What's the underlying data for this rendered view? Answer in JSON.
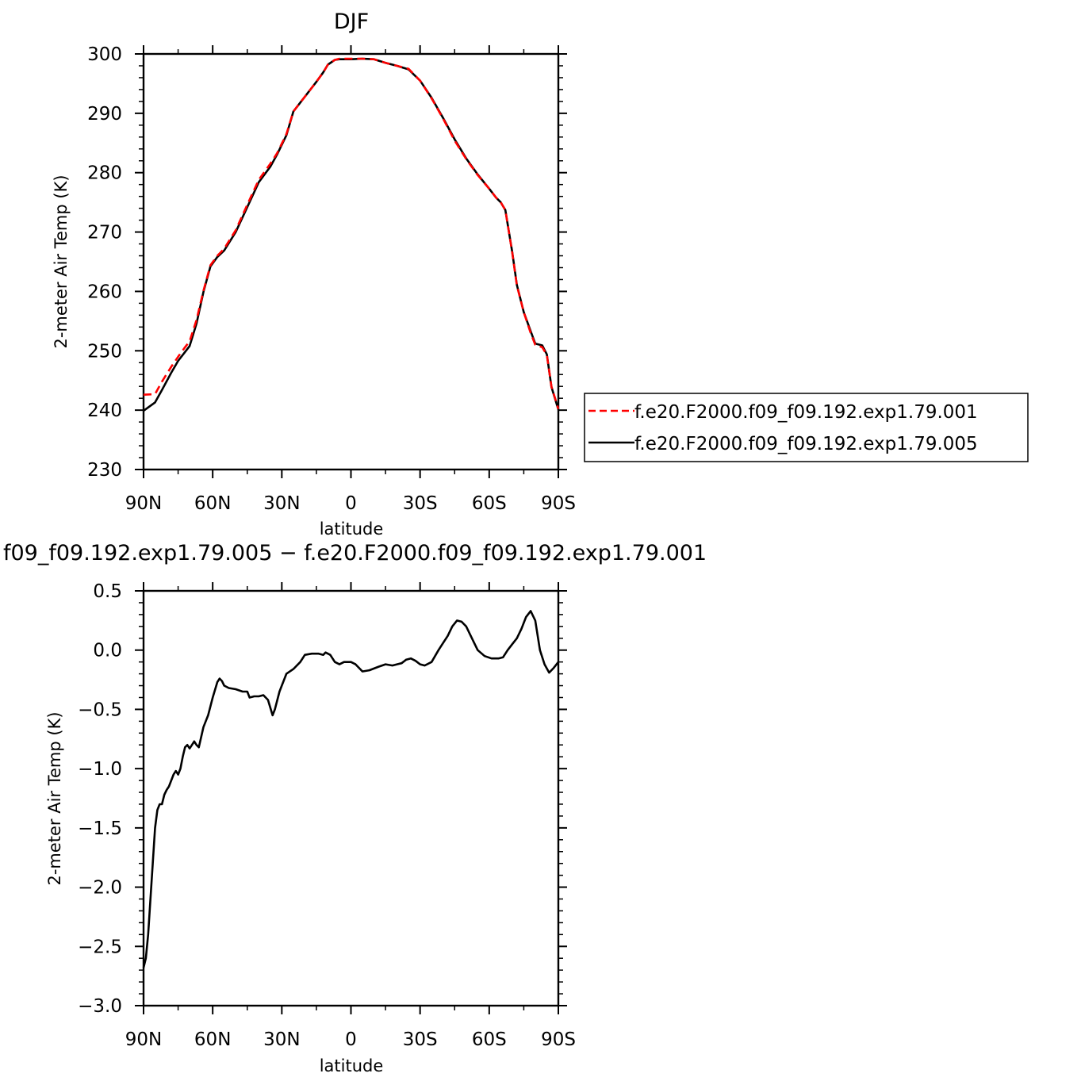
{
  "chart_data": [
    {
      "type": "line",
      "title": "DJF",
      "xlabel": "latitude",
      "ylabel": "2-meter Air Temp (K)",
      "xlim": [
        90,
        -90
      ],
      "ylim": [
        230,
        300
      ],
      "xticks": [
        90,
        60,
        30,
        0,
        -30,
        -60,
        -90
      ],
      "xtick_labels": [
        "90N",
        "60N",
        "30N",
        "0",
        "30S",
        "60S",
        "90S"
      ],
      "yticks": [
        230,
        240,
        250,
        260,
        270,
        280,
        290,
        300
      ],
      "ytick_labels": [
        "230",
        "240",
        "250",
        "260",
        "270",
        "280",
        "290",
        "300"
      ],
      "grid": false,
      "legend": "right",
      "series": [
        {
          "name": "f.e20.F2000.f09_f09.192.exp1.79.001",
          "color": "#ff0000",
          "style": "dashed",
          "x": [
            90,
            85,
            82,
            78,
            75,
            72,
            70,
            67,
            64,
            61,
            58,
            55,
            50,
            45,
            40,
            35,
            32,
            28,
            25,
            20,
            15,
            12,
            10,
            7,
            5,
            0,
            -5,
            -10,
            -15,
            -20,
            -25,
            -30,
            -35,
            -40,
            -45,
            -50,
            -55,
            -60,
            -63,
            -65,
            -67,
            -70,
            -72,
            -75,
            -78,
            -80,
            -83,
            -85,
            -87,
            -90
          ],
          "y": [
            242.6,
            242.7,
            244.8,
            247.3,
            249.0,
            250.6,
            251.6,
            255.2,
            260.1,
            264.4,
            266.0,
            267.2,
            270.3,
            274.6,
            278.8,
            281.5,
            283.3,
            286.5,
            290.3,
            292.8,
            295.3,
            296.9,
            298.2,
            299.0,
            299.2,
            299.2,
            299.2,
            299.1,
            298.5,
            298.0,
            297.5,
            295.5,
            292.5,
            289.1,
            285.4,
            282.3,
            279.6,
            277.3,
            275.8,
            275.0,
            273.7,
            266.5,
            261.0,
            256.5,
            253.0,
            251.0,
            250.6,
            249.3,
            244.0,
            240.2
          ]
        },
        {
          "name": "f.e20.F2000.f09_f09.192.exp1.79.005",
          "color": "#000000",
          "style": "solid",
          "x": [
            90,
            85,
            82,
            78,
            75,
            72,
            70,
            67,
            64,
            61,
            58,
            55,
            50,
            45,
            40,
            35,
            32,
            28,
            25,
            20,
            15,
            12,
            10,
            7,
            5,
            0,
            -5,
            -10,
            -15,
            -20,
            -25,
            -30,
            -35,
            -40,
            -45,
            -50,
            -55,
            -60,
            -63,
            -65,
            -67,
            -70,
            -72,
            -75,
            -78,
            -80,
            -83,
            -85,
            -87,
            -90
          ],
          "y": [
            239.9,
            241.3,
            243.4,
            246.3,
            248.3,
            249.8,
            250.8,
            254.6,
            259.9,
            264.2,
            265.8,
            266.9,
            270.0,
            274.2,
            278.4,
            281.0,
            283.1,
            286.3,
            290.3,
            292.8,
            295.3,
            296.9,
            298.2,
            299.0,
            299.1,
            299.1,
            299.2,
            299.1,
            298.5,
            298.0,
            297.4,
            295.5,
            292.6,
            289.2,
            285.6,
            282.4,
            279.7,
            277.3,
            275.8,
            275.0,
            273.7,
            266.6,
            261.1,
            256.5,
            253.3,
            251.2,
            250.9,
            249.4,
            243.9,
            240.1
          ]
        }
      ]
    },
    {
      "type": "line",
      "title": "f09_f09.192.exp1.79.005 − f.e20.F2000.f09_f09.192.exp1.79.001",
      "xlabel": "latitude",
      "ylabel": "2-meter Air Temp (K)",
      "xlim": [
        90,
        -90
      ],
      "ylim": [
        -3.0,
        0.5
      ],
      "xticks": [
        90,
        60,
        30,
        0,
        -30,
        -60,
        -90
      ],
      "xtick_labels": [
        "90N",
        "60N",
        "30N",
        "0",
        "30S",
        "60S",
        "90S"
      ],
      "yticks": [
        -3.0,
        -2.5,
        -2.0,
        -1.5,
        -1.0,
        -0.5,
        0.0,
        0.5
      ],
      "ytick_labels": [
        "−3.0",
        "−2.5",
        "−2.0",
        "−1.5",
        "−1.0",
        "−0.5",
        "0.0",
        "0.5"
      ],
      "grid": false,
      "series": [
        {
          "color": "#000000",
          "style": "solid",
          "x": [
            90,
            89,
            88,
            87,
            86,
            85,
            84,
            83,
            82,
            81,
            80,
            79,
            78,
            77,
            76,
            75,
            74,
            73,
            72,
            71,
            70,
            69,
            68,
            67,
            66,
            64,
            62,
            60,
            58,
            57,
            56,
            55,
            53,
            50,
            47,
            45,
            44,
            42,
            40,
            38,
            36,
            34,
            33,
            31,
            30,
            28,
            25,
            22,
            20,
            17,
            14,
            12,
            11,
            9,
            7,
            5,
            3,
            1,
            0,
            -2,
            -5,
            -8,
            -12,
            -15,
            -18,
            -20,
            -22,
            -24,
            -26,
            -28,
            -30,
            -32,
            -35,
            -38,
            -40,
            -42,
            -44,
            -46,
            -48,
            -50,
            -53,
            -55,
            -58,
            -61,
            -64,
            -66,
            -68,
            -70,
            -72,
            -74,
            -76,
            -78,
            -80,
            -82,
            -84,
            -86,
            -88,
            -90
          ],
          "y": [
            -2.68,
            -2.6,
            -2.4,
            -2.1,
            -1.8,
            -1.5,
            -1.35,
            -1.3,
            -1.3,
            -1.22,
            -1.18,
            -1.15,
            -1.1,
            -1.05,
            -1.02,
            -1.05,
            -1.0,
            -0.9,
            -0.82,
            -0.8,
            -0.83,
            -0.8,
            -0.77,
            -0.8,
            -0.82,
            -0.65,
            -0.55,
            -0.4,
            -0.27,
            -0.24,
            -0.26,
            -0.3,
            -0.32,
            -0.33,
            -0.35,
            -0.35,
            -0.4,
            -0.39,
            -0.39,
            -0.38,
            -0.42,
            -0.55,
            -0.5,
            -0.35,
            -0.3,
            -0.2,
            -0.16,
            -0.1,
            -0.04,
            -0.03,
            -0.03,
            -0.04,
            -0.02,
            -0.04,
            -0.1,
            -0.12,
            -0.1,
            -0.1,
            -0.1,
            -0.12,
            -0.18,
            -0.17,
            -0.14,
            -0.12,
            -0.13,
            -0.12,
            -0.11,
            -0.08,
            -0.07,
            -0.09,
            -0.12,
            -0.13,
            -0.1,
            0.0,
            0.06,
            0.12,
            0.2,
            0.25,
            0.24,
            0.2,
            0.08,
            0.0,
            -0.05,
            -0.07,
            -0.07,
            -0.06,
            0.0,
            0.05,
            0.1,
            0.18,
            0.28,
            0.33,
            0.25,
            0.0,
            -0.12,
            -0.19,
            -0.15,
            -0.1
          ]
        }
      ]
    }
  ]
}
